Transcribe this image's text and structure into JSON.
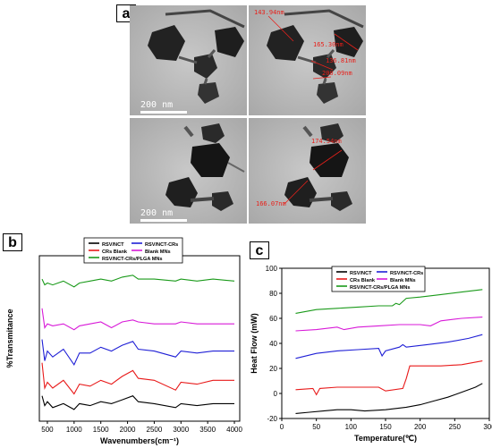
{
  "panels": {
    "a": "a",
    "b": "b",
    "c": "c"
  },
  "tem": {
    "scale_label": "200 nm",
    "measurements_top_right": [
      "143.94nm",
      "165.30nm",
      "136.81nm",
      "200.09nm"
    ],
    "measurements_bottom_right": [
      "174.54nm",
      "166.07nm"
    ]
  },
  "chart_data": [
    {
      "type": "line",
      "panel": "b",
      "xlabel": "Wavenumbers(cm⁻¹)",
      "ylabel": "%Transmitance",
      "xlim": [
        350,
        4100
      ],
      "x_ticks": [
        500,
        1000,
        1500,
        2000,
        2500,
        3000,
        3500,
        4000
      ],
      "legend": [
        "RSV/NCT",
        "RSV/NCT-CRs",
        "CRs Blank",
        "Blank MNs",
        "RSV/NCT-CRs/PLGA MNs"
      ],
      "legend_position": "top",
      "series": [
        {
          "name": "RSV/NCT",
          "color": "#000000",
          "x": [
            400,
            450,
            500,
            600,
            800,
            1000,
            1100,
            1300,
            1500,
            1700,
            1900,
            2100,
            2200,
            2500,
            2900,
            3000,
            3300,
            3600,
            4000
          ],
          "y": [
            8,
            3,
            5,
            2,
            4,
            1,
            4,
            3,
            5,
            4,
            6,
            8,
            5,
            4,
            2,
            4,
            3,
            4,
            4
          ]
        },
        {
          "name": "RSV/NCT-CRs",
          "color": "#1f1fd6",
          "x": [
            400,
            450,
            500,
            600,
            800,
            1000,
            1100,
            1300,
            1500,
            1700,
            1900,
            2100,
            2200,
            2500,
            2900,
            3000,
            3300,
            3600,
            4000
          ],
          "y": [
            37,
            26,
            31,
            28,
            32,
            24,
            30,
            30,
            33,
            31,
            34,
            36,
            32,
            31,
            28,
            31,
            30,
            31,
            31
          ]
        },
        {
          "name": "CRs Blank",
          "color": "#e81a1a",
          "x": [
            400,
            450,
            500,
            600,
            800,
            1000,
            1100,
            1300,
            1500,
            1700,
            1900,
            2100,
            2200,
            2500,
            2900,
            3000,
            3300,
            3600,
            4000
          ],
          "y": [
            25,
            12,
            15,
            12,
            16,
            9,
            14,
            13,
            16,
            14,
            18,
            21,
            17,
            16,
            11,
            15,
            14,
            16,
            16
          ]
        },
        {
          "name": "Blank MNs",
          "color": "#d81ad8",
          "x": [
            400,
            450,
            500,
            600,
            800,
            1000,
            1100,
            1300,
            1500,
            1700,
            1900,
            2100,
            2200,
            2500,
            2900,
            3000,
            3300,
            3600,
            4000
          ],
          "y": [
            53,
            43,
            45,
            44,
            45,
            42,
            44,
            45,
            46,
            43,
            46,
            47,
            46,
            45,
            45,
            46,
            45,
            45,
            45
          ]
        },
        {
          "name": "RSV/NCT-CRs/PLGA MNs",
          "color": "#1a9a1a",
          "x": [
            400,
            450,
            500,
            600,
            800,
            1000,
            1100,
            1300,
            1500,
            1700,
            1900,
            2100,
            2200,
            2500,
            2900,
            3000,
            3300,
            3600,
            4000
          ],
          "y": [
            68,
            65,
            66,
            65,
            67,
            64,
            66,
            67,
            68,
            67,
            69,
            70,
            68,
            68,
            67,
            68,
            67,
            68,
            67
          ]
        }
      ]
    },
    {
      "type": "line",
      "panel": "c",
      "xlabel": "Temperature(℃)",
      "ylabel": "Heat Flow (mW)",
      "xlim": [
        0,
        300
      ],
      "ylim": [
        -20,
        100
      ],
      "x_ticks": [
        0,
        50,
        100,
        150,
        200,
        250,
        300
      ],
      "y_ticks": [
        -20,
        0,
        20,
        40,
        60,
        80,
        100
      ],
      "legend": [
        "RSV/NCT",
        "RSV/NCT-CRs",
        "CRs Blank",
        "Blank MNs",
        "RSV/NCT-CRs/PLGA MNs"
      ],
      "legend_position": "top-left",
      "series": [
        {
          "name": "RSV/NCT",
          "color": "#000000",
          "x": [
            20,
            40,
            60,
            80,
            100,
            120,
            150,
            180,
            200,
            220,
            240,
            260,
            280,
            290
          ],
          "y": [
            -16,
            -15,
            -14,
            -13,
            -13,
            -14,
            -13,
            -11,
            -9,
            -6,
            -3,
            1,
            5,
            8
          ]
        },
        {
          "name": "RSV/NCT-CRs",
          "color": "#1f1fd6",
          "x": [
            20,
            50,
            80,
            110,
            140,
            145,
            150,
            170,
            175,
            180,
            210,
            240,
            270,
            290
          ],
          "y": [
            28,
            32,
            34,
            35,
            36,
            30,
            34,
            37,
            39,
            37,
            39,
            41,
            44,
            47
          ]
        },
        {
          "name": "CRs Blank",
          "color": "#e81a1a",
          "x": [
            20,
            45,
            50,
            55,
            80,
            110,
            140,
            150,
            175,
            180,
            185,
            200,
            230,
            260,
            290
          ],
          "y": [
            3,
            4,
            -1,
            4,
            5,
            5,
            5,
            2,
            4,
            12,
            22,
            22,
            22,
            23,
            26
          ]
        },
        {
          "name": "Blank MNs",
          "color": "#d81ad8",
          "x": [
            20,
            50,
            80,
            90,
            110,
            140,
            170,
            200,
            215,
            230,
            260,
            290
          ],
          "y": [
            50,
            51,
            53,
            51,
            53,
            54,
            55,
            55,
            54,
            58,
            60,
            61
          ]
        },
        {
          "name": "RSV/NCT-CRs/PLGA MNs",
          "color": "#1a9a1a",
          "x": [
            20,
            50,
            80,
            110,
            140,
            160,
            165,
            170,
            180,
            200,
            230,
            260,
            290
          ],
          "y": [
            64,
            67,
            68,
            69,
            70,
            70,
            72,
            71,
            76,
            77,
            79,
            81,
            83
          ]
        }
      ]
    }
  ]
}
